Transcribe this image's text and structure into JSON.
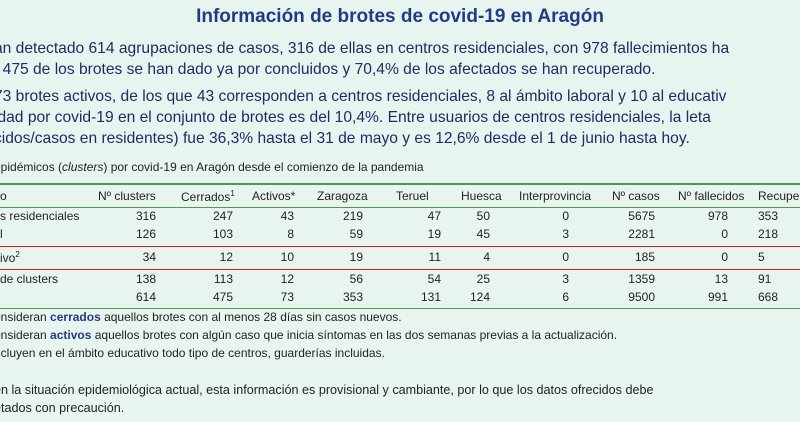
{
  "title": "Información de brotes de covid-19 en Aragón",
  "paragraph1": [
    "an detectado 614 agrupaciones de casos, 316 de ellas en centros residenciales, con 978 fallecimientos ha",
    ". 475 de los brotes se han dado ya por concluidos y 70,4% de los afectados se han recuperado."
  ],
  "paragraph2": [
    "73 brotes activos, de los que 43 corresponden a centros residenciales, 8 al ámbito laboral y 10 al educativ",
    "idad por covid-19 en el conjunto de brotes es del 10,4%. Entre usuarios de centros residenciales, la leta",
    "cidos/casos en residentes) fue 36,3% hasta el 31 de mayo y es 12,6% desde el 1 de junio hasta hoy."
  ],
  "caption": {
    "before": "epidémicos (",
    "italic": "clusters",
    "after": ") por covid-19 en Aragón desde el comienzo de la pandemia"
  },
  "table": {
    "headers": {
      "c0": "o",
      "c1": "Nº clusters",
      "c2": "Cerrados",
      "c2sup": "1",
      "c3": "Activos*",
      "c4": "Zaragoza",
      "c5": "Teruel",
      "c6": "Huesca",
      "c7": "Interprovincia",
      "c8": "Nº casos",
      "c9": "Nº fallecidos",
      "c10": "Recupe"
    },
    "rows": [
      {
        "c0": "s residenciales",
        "c1": "316",
        "c2": "247",
        "c3": "43",
        "c4": "219",
        "c5": "47",
        "c6": "50",
        "c7": "0",
        "c8": "5675",
        "c9": "978",
        "c10": "353"
      },
      {
        "c0": "l",
        "c1": "126",
        "c2": "103",
        "c3": "8",
        "c4": "59",
        "c5": "19",
        "c6": "45",
        "c7": "3",
        "c8": "2281",
        "c9": "0",
        "c10": "218"
      },
      {
        "c0": "ivo",
        "c0sup": "2",
        "c1": "34",
        "c2": "12",
        "c3": "10",
        "c4": "19",
        "c5": "11",
        "c6": "4",
        "c7": "0",
        "c8": "185",
        "c9": "0",
        "c10": "5"
      },
      {
        "c0": "de clusters",
        "c1": "138",
        "c2": "113",
        "c3": "12",
        "c4": "56",
        "c5": "54",
        "c6": "25",
        "c7": "3",
        "c8": "1359",
        "c9": "13",
        "c10": "91"
      },
      {
        "c0": "",
        "c1": "614",
        "c2": "475",
        "c3": "73",
        "c4": "353",
        "c5": "131",
        "c6": "124",
        "c7": "6",
        "c8": "9500",
        "c9": "991",
        "c10": "668"
      }
    ]
  },
  "notes": [
    {
      "before": "onsideran ",
      "bold": "cerrados",
      "after": " aquellos brotes con al menos 28 días sin casos nuevos."
    },
    {
      "before": "onsideran ",
      "bold": "activos",
      "after": " aquellos brotes con algún caso que inicia síntomas en las dos semanas previas a la actualización."
    },
    {
      "before": "ncluyen en el ámbito educativo todo tipo de centros, guarderías incluidas.",
      "bold": "",
      "after": ""
    }
  ],
  "footer": [
    "en la situación epidemiológica actual, esta información es provisional y cambiante, por lo que los datos ofrecidos debe",
    "etados con precaución."
  ]
}
